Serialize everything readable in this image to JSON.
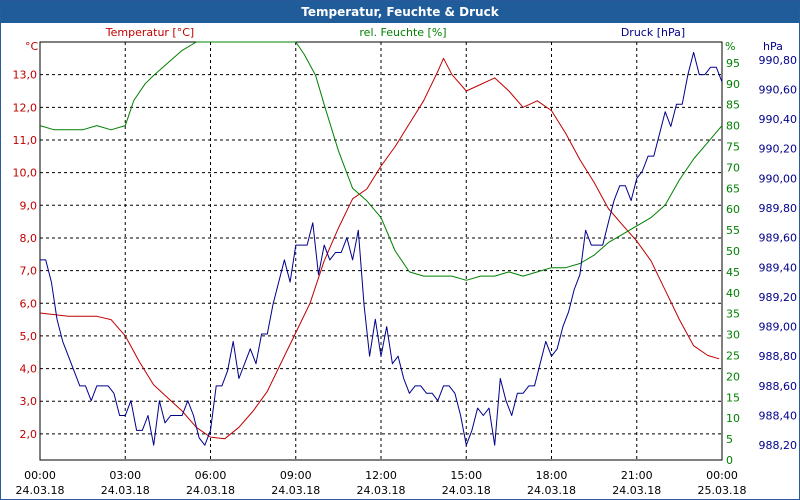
{
  "window": {
    "title": "Temperatur, Feuchte & Druck"
  },
  "chart_data": {
    "type": "line",
    "title": "Temperatur, Feuchte & Druck",
    "grid": true,
    "x_ticks": [
      {
        "time": "00:00",
        "date": "24.03.18"
      },
      {
        "time": "03:00",
        "date": "24.03.18"
      },
      {
        "time": "06:00",
        "date": "24.03.18"
      },
      {
        "time": "09:00",
        "date": "24.03.18"
      },
      {
        "time": "12:00",
        "date": "24.03.18"
      },
      {
        "time": "15:00",
        "date": "24.03.18"
      },
      {
        "time": "18:00",
        "date": "24.03.18"
      },
      {
        "time": "21:00",
        "date": "24.03.18"
      },
      {
        "time": "00:00",
        "date": "25.03.18"
      }
    ],
    "axes": {
      "temperature": {
        "label": "Temperatur [°C]",
        "unit": "°C",
        "range": [
          1.2,
          14.0
        ],
        "ticks": [
          "2,0",
          "3,0",
          "4,0",
          "5,0",
          "6,0",
          "7,0",
          "8,0",
          "9,0",
          "10,0",
          "11,0",
          "12,0",
          "13,0"
        ],
        "color": "#c00000"
      },
      "humidity": {
        "label": "rel. Feuchte [%]",
        "unit": "%",
        "range": [
          0,
          100
        ],
        "ticks": [
          "0",
          "5",
          "10",
          "15",
          "20",
          "25",
          "30",
          "35",
          "40",
          "45",
          "50",
          "55",
          "60",
          "65",
          "70",
          "75",
          "80",
          "85",
          "90",
          "95"
        ],
        "color": "#008000"
      },
      "pressure": {
        "label": "Druck [hPa]",
        "unit": "hPa",
        "range": [
          988.1,
          990.92
        ],
        "ticks": [
          "988,20",
          "988,40",
          "988,60",
          "988,80",
          "989,00",
          "989,20",
          "989,40",
          "989,60",
          "989,80",
          "990,00",
          "990,20",
          "990,40",
          "990,60",
          "990,80"
        ],
        "color": "#00008b"
      }
    },
    "series": [
      {
        "name": "Temperatur [°C]",
        "axis": "temperature",
        "color": "#c00000",
        "x": [
          0,
          1,
          2,
          2.5,
          3,
          3.5,
          4,
          4.5,
          5,
          5.5,
          6,
          6.5,
          7,
          7.5,
          8,
          8.5,
          9,
          9.5,
          10,
          10.5,
          11,
          11.5,
          12,
          12.5,
          13,
          13.5,
          14,
          14.2,
          14.5,
          15,
          15.5,
          16,
          16.5,
          17,
          17.5,
          18,
          18.5,
          19,
          19.5,
          20,
          20.5,
          21,
          21.5,
          22,
          22.5,
          23,
          23.5,
          23.9
        ],
        "values": [
          5.7,
          5.6,
          5.6,
          5.5,
          5.0,
          4.2,
          3.5,
          3.1,
          2.7,
          2.2,
          1.9,
          1.85,
          2.2,
          2.7,
          3.3,
          4.2,
          5.1,
          6.0,
          7.3,
          8.3,
          9.2,
          9.5,
          10.2,
          10.8,
          11.5,
          12.2,
          13.1,
          13.5,
          13.0,
          12.5,
          12.7,
          12.9,
          12.5,
          12.0,
          12.2,
          11.9,
          11.2,
          10.4,
          9.7,
          8.9,
          8.4,
          7.9,
          7.3,
          6.4,
          5.5,
          4.7,
          4.4,
          4.3
        ]
      },
      {
        "name": "rel. Feuchte [%]",
        "axis": "humidity",
        "color": "#008000",
        "x": [
          0,
          0.5,
          1,
          1.5,
          2,
          2.5,
          3,
          3.3,
          3.7,
          4,
          4.5,
          5,
          5.5,
          6,
          6.5,
          7,
          7.5,
          8,
          8.5,
          9,
          9.3,
          9.7,
          10,
          10.5,
          11,
          11.5,
          12,
          12.5,
          13,
          13.5,
          14,
          14.5,
          15,
          15.5,
          16,
          16.5,
          17,
          17.5,
          18,
          18.5,
          19,
          19.5,
          20,
          20.5,
          21,
          21.5,
          22,
          22.5,
          23,
          23.5,
          24
        ],
        "values": [
          80,
          79,
          79,
          79,
          80,
          79,
          80,
          86,
          90,
          92,
          95,
          98,
          100,
          100,
          100,
          100,
          100,
          100,
          100,
          100,
          97,
          92,
          85,
          74,
          65,
          62,
          58,
          50,
          45,
          44,
          44,
          44,
          43,
          44,
          44,
          45,
          44,
          45,
          46,
          46,
          47,
          49,
          52,
          54,
          56,
          58,
          61,
          67,
          72,
          76,
          80
        ]
      },
      {
        "name": "Druck [hPa]",
        "axis": "pressure",
        "color": "#00008b",
        "x": [
          0,
          0.2,
          0.4,
          0.6,
          0.8,
          1.0,
          1.2,
          1.4,
          1.6,
          1.8,
          2.0,
          2.2,
          2.4,
          2.6,
          2.8,
          3.0,
          3.2,
          3.4,
          3.6,
          3.8,
          4.0,
          4.2,
          4.4,
          4.6,
          4.8,
          5.0,
          5.2,
          5.4,
          5.6,
          5.8,
          6.0,
          6.2,
          6.4,
          6.6,
          6.8,
          7.0,
          7.2,
          7.4,
          7.6,
          7.8,
          8.0,
          8.2,
          8.4,
          8.6,
          8.8,
          9.0,
          9.2,
          9.4,
          9.6,
          9.8,
          10.0,
          10.2,
          10.4,
          10.6,
          10.8,
          11.0,
          11.2,
          11.4,
          11.6,
          11.8,
          12.0,
          12.2,
          12.4,
          12.6,
          12.8,
          13.0,
          13.2,
          13.4,
          13.6,
          13.8,
          14.0,
          14.2,
          14.4,
          14.6,
          14.8,
          15.0,
          15.2,
          15.4,
          15.6,
          15.8,
          16.0,
          16.2,
          16.4,
          16.6,
          16.8,
          17.0,
          17.2,
          17.4,
          17.6,
          17.8,
          18.0,
          18.2,
          18.4,
          18.6,
          18.8,
          19.0,
          19.2,
          19.4,
          19.6,
          19.8,
          20.0,
          20.2,
          20.4,
          20.6,
          20.8,
          21.0,
          21.2,
          21.4,
          21.6,
          21.8,
          22.0,
          22.2,
          22.4,
          22.6,
          22.8,
          23.0,
          23.2,
          23.4,
          23.6,
          23.8,
          24.0
        ],
        "values": [
          989.45,
          989.45,
          989.3,
          989.05,
          988.9,
          988.8,
          988.7,
          988.6,
          988.6,
          988.5,
          988.6,
          988.6,
          988.6,
          988.55,
          988.4,
          988.4,
          988.5,
          988.3,
          988.3,
          988.4,
          988.2,
          988.5,
          988.35,
          988.4,
          988.4,
          988.4,
          988.5,
          988.4,
          988.25,
          988.2,
          988.3,
          988.6,
          988.6,
          988.7,
          988.9,
          988.65,
          988.75,
          988.85,
          988.75,
          988.95,
          988.95,
          989.15,
          989.3,
          989.45,
          989.3,
          989.55,
          989.55,
          989.55,
          989.7,
          989.35,
          989.55,
          989.45,
          989.5,
          989.5,
          989.6,
          989.45,
          989.65,
          989.15,
          988.8,
          989.05,
          988.8,
          989.0,
          988.75,
          988.8,
          988.65,
          988.55,
          988.6,
          988.6,
          988.55,
          988.55,
          988.5,
          988.6,
          988.6,
          988.55,
          988.4,
          988.2,
          988.3,
          988.45,
          988.4,
          988.45,
          988.2,
          988.65,
          988.5,
          988.4,
          988.55,
          988.55,
          988.6,
          988.6,
          988.75,
          988.9,
          988.8,
          988.85,
          989.0,
          989.1,
          989.25,
          989.35,
          989.65,
          989.55,
          989.55,
          989.55,
          989.7,
          989.85,
          989.95,
          989.95,
          989.85,
          990.0,
          990.05,
          990.15,
          990.15,
          990.3,
          990.45,
          990.35,
          990.5,
          990.5,
          990.7,
          990.85,
          990.7,
          990.7,
          990.75,
          990.75,
          990.65
        ]
      }
    ]
  }
}
